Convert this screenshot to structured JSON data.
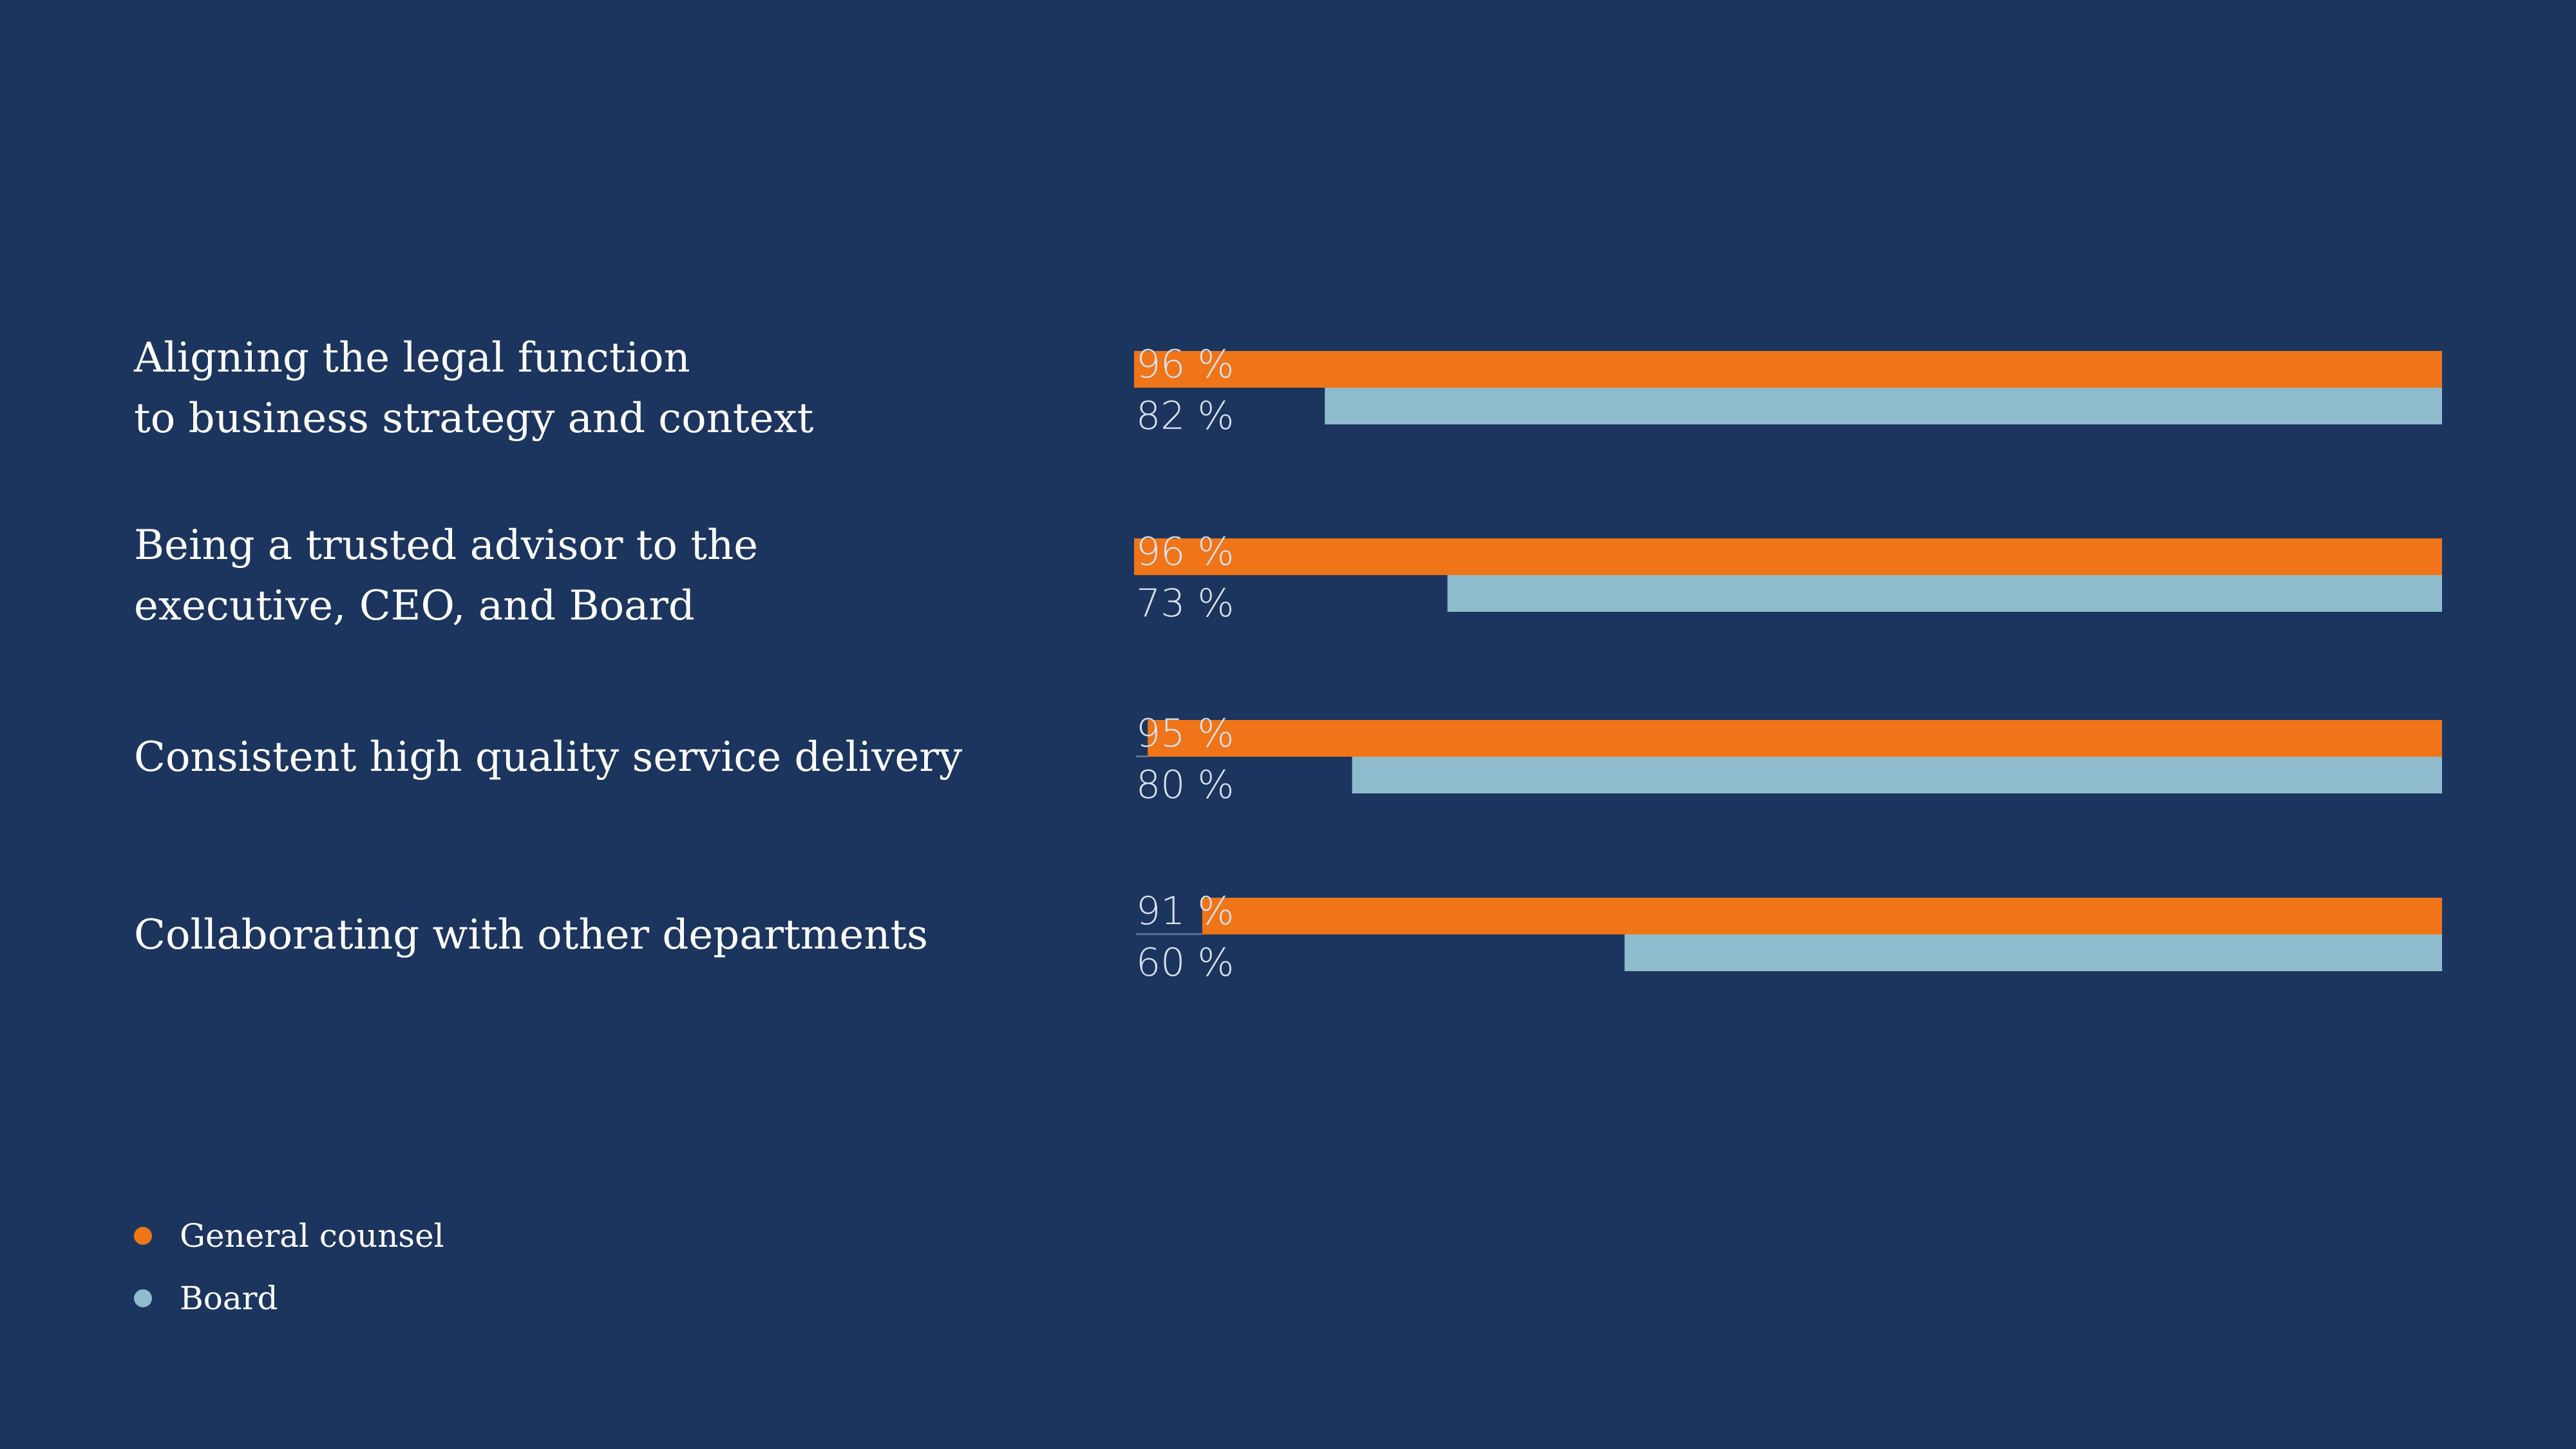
{
  "colors": {
    "background": "#1c355e",
    "general_counsel": "#ef7518",
    "board": "#8fbccc",
    "axis_line": "#5b7296"
  },
  "chart_data": {
    "type": "bar",
    "orientation": "horizontal",
    "categories": [
      [
        "Aligning the legal function",
        "to business strategy and context"
      ],
      [
        "Being a trusted advisor to the",
        "executive, CEO, and Board"
      ],
      [
        "Consistent high quality service delivery"
      ],
      [
        "Collaborating with other departments"
      ]
    ],
    "series": [
      {
        "name": "General counsel",
        "color": "#ef7518",
        "values": [
          96,
          96,
          95,
          91
        ],
        "labels": [
          "96 %",
          "96 %",
          "95 %",
          "91 %"
        ]
      },
      {
        "name": "Board",
        "color": "#8fbccc",
        "values": [
          82,
          73,
          80,
          60
        ],
        "labels": [
          "82 %",
          "73 %",
          "80 %",
          "60 %"
        ]
      }
    ],
    "xlim": [
      0,
      100
    ],
    "unit": "%",
    "bar_anchor": "right",
    "legend_position": "bottom-left"
  },
  "legend": {
    "items": [
      {
        "label": "General counsel",
        "color": "#ef7518"
      },
      {
        "label": "Board",
        "color": "#8fbccc"
      }
    ]
  }
}
